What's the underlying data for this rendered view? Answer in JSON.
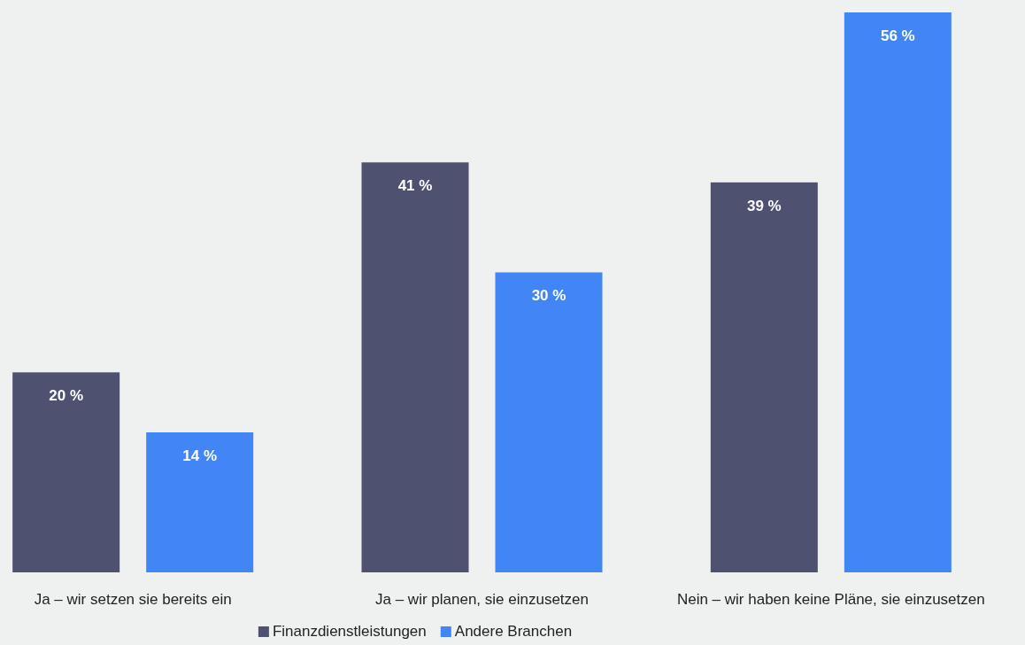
{
  "chart_data": {
    "type": "bar",
    "categories": [
      "Ja – wir setzen sie bereits ein",
      "Ja – wir planen, sie einzusetzen",
      "Nein – wir haben keine Pläne, sie einzusetzen"
    ],
    "series": [
      {
        "name": "Finanzdienstleistungen",
        "color": "#4f5171",
        "values": [
          20,
          41,
          39
        ],
        "value_labels": [
          "20 %",
          "41 %",
          "39 %"
        ]
      },
      {
        "name": "Andere Branchen",
        "color": "#4286f5",
        "values": [
          14,
          30,
          56
        ],
        "value_labels": [
          "14 %",
          "30 %",
          "56 %"
        ]
      }
    ],
    "legend": "bottom"
  }
}
